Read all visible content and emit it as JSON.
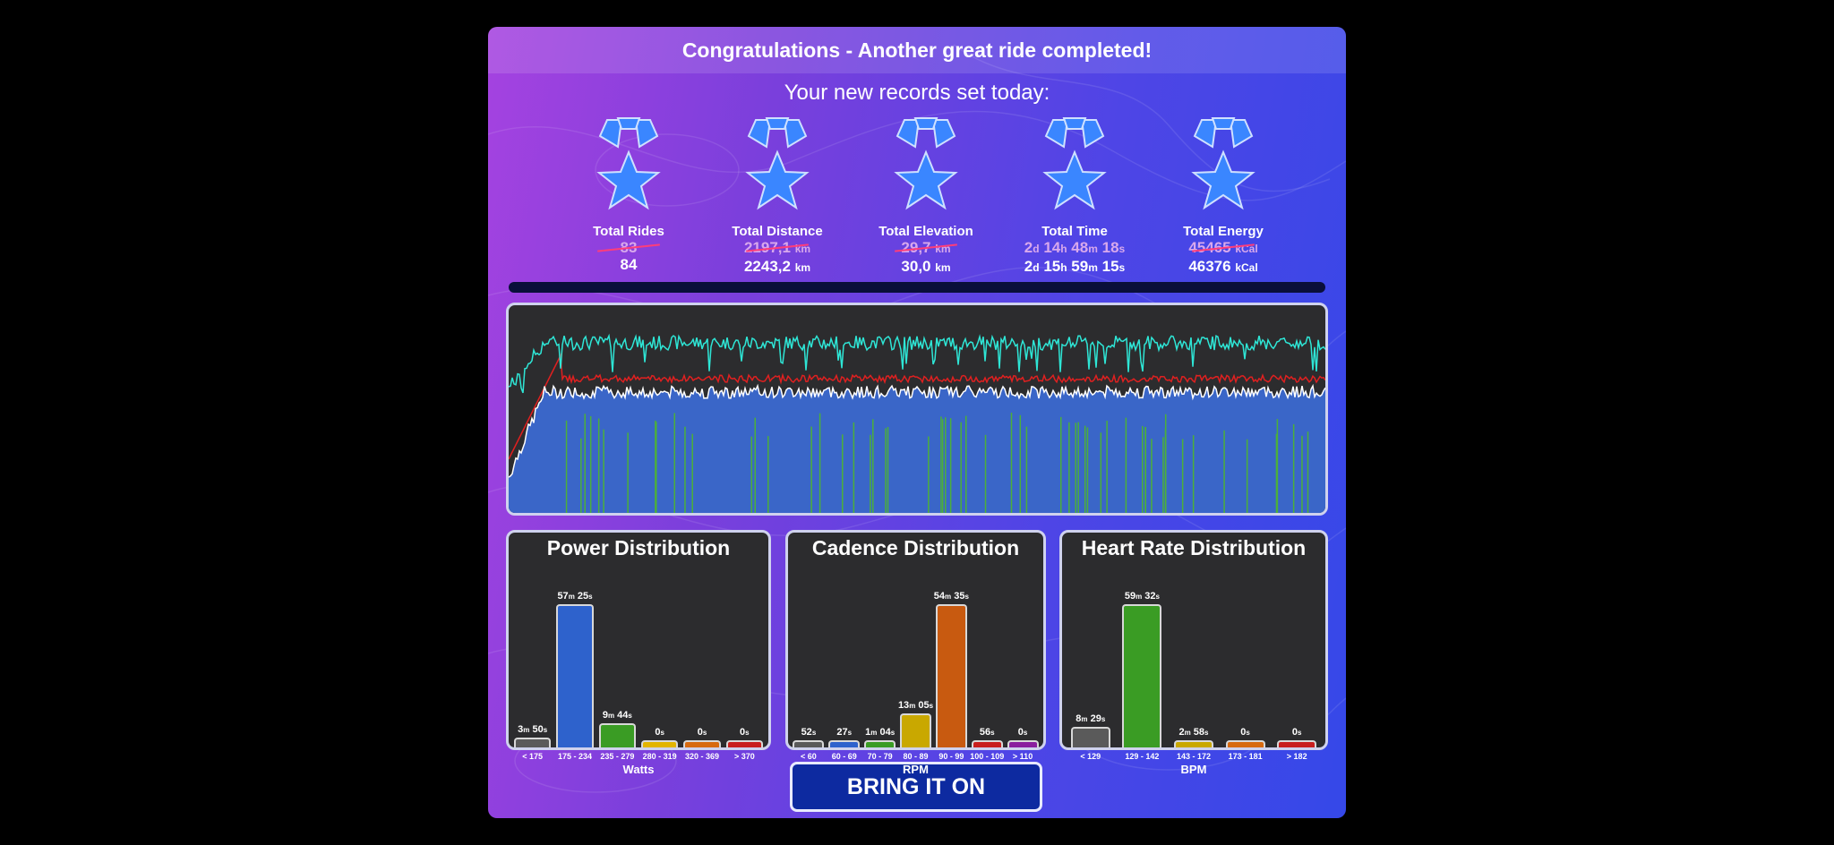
{
  "banner": {
    "title": "Congratulations - Another great ride completed!"
  },
  "records": {
    "title": "Your new records set today:",
    "items": [
      {
        "label": "Total Rides",
        "old": "83",
        "new": "84"
      },
      {
        "label": "Total Distance",
        "old_value": "2197,1",
        "old_unit": "km",
        "new_value": "2243,2",
        "new_unit": "km"
      },
      {
        "label": "Total Elevation",
        "old_value": "29,7",
        "old_unit": "km",
        "new_value": "30,0",
        "new_unit": "km"
      },
      {
        "label": "Total Time",
        "old_parts": [
          "2",
          "d",
          " 14",
          "h",
          " 48",
          "m",
          " 18",
          "s"
        ],
        "new_parts": [
          "2",
          "d",
          " 15",
          "h",
          " 59",
          "m",
          " 15",
          "s"
        ]
      },
      {
        "label": "Total Energy",
        "old_value": "45465",
        "old_unit": "kCal",
        "new_value": "46376",
        "new_unit": "kCal"
      }
    ]
  },
  "colors": {
    "medal": "#3a86ff",
    "power_line": "#ffffff",
    "cadence_line": "#2ee6d6",
    "hr_line": "#e02020",
    "area": "#3a66c8",
    "green_spike": "#4caf3a"
  },
  "distributions": [
    {
      "title": "Power Distribution",
      "unit": "Watts",
      "bars": [
        {
          "category": "< 175",
          "value_min": 3,
          "value_s": 50,
          "label": [
            "3",
            "m",
            " 50",
            "s"
          ],
          "color": "#5a5a5a"
        },
        {
          "category": "175 - 234",
          "value_min": 57,
          "value_s": 25,
          "label": [
            "57",
            "m",
            " 25",
            "s"
          ],
          "color": "#2e62cc"
        },
        {
          "category": "235 - 279",
          "value_min": 9,
          "value_s": 44,
          "label": [
            "9",
            "m",
            " 44",
            "s"
          ],
          "color": "#3a9c24"
        },
        {
          "category": "280 - 319",
          "value_min": 0,
          "value_s": 0,
          "label": [
            "0",
            "s"
          ],
          "color": "#e2b400"
        },
        {
          "category": "320 - 369",
          "value_min": 0,
          "value_s": 0,
          "label": [
            "0",
            "s"
          ],
          "color": "#d76a10"
        },
        {
          "category": "> 370",
          "value_min": 0,
          "value_s": 0,
          "label": [
            "0",
            "s"
          ],
          "color": "#c81e1e"
        }
      ]
    },
    {
      "title": "Cadence Distribution",
      "unit": "RPM",
      "bars": [
        {
          "category": "< 60",
          "value_min": 0,
          "value_s": 52,
          "label": [
            "52",
            "s"
          ],
          "color": "#5a5a5a"
        },
        {
          "category": "60 - 69",
          "value_min": 0,
          "value_s": 27,
          "label": [
            "27",
            "s"
          ],
          "color": "#2e62cc"
        },
        {
          "category": "70 - 79",
          "value_min": 1,
          "value_s": 4,
          "label": [
            "1",
            "m",
            " 04",
            "s"
          ],
          "color": "#3a9c24"
        },
        {
          "category": "80 - 89",
          "value_min": 13,
          "value_s": 5,
          "label": [
            "13",
            "m",
            " 05",
            "s"
          ],
          "color": "#c9a800"
        },
        {
          "category": "90 - 99",
          "value_min": 54,
          "value_s": 35,
          "label": [
            "54",
            "m",
            " 35",
            "s"
          ],
          "color": "#c85a10"
        },
        {
          "category": "100 - 109",
          "value_min": 0,
          "value_s": 56,
          "label": [
            "56",
            "s"
          ],
          "color": "#c81e1e"
        },
        {
          "category": "> 110",
          "value_min": 0,
          "value_s": 0,
          "label": [
            "0",
            "s"
          ],
          "color": "#8a1e9e"
        }
      ]
    },
    {
      "title": "Heart Rate Distribution",
      "unit": "BPM",
      "bars": [
        {
          "category": "< 129",
          "value_min": 8,
          "value_s": 29,
          "label": [
            "8",
            "m",
            " 29",
            "s"
          ],
          "color": "#5a5a5a"
        },
        {
          "category": "129 - 142",
          "value_min": 59,
          "value_s": 32,
          "label": [
            "59",
            "m",
            " 32",
            "s"
          ],
          "color": "#3a9c24"
        },
        {
          "category": "143 - 172",
          "value_min": 2,
          "value_s": 58,
          "label": [
            "2",
            "m",
            " 58",
            "s"
          ],
          "color": "#c9a800"
        },
        {
          "category": "173 - 181",
          "value_min": 0,
          "value_s": 0,
          "label": [
            "0",
            "s"
          ],
          "color": "#d76a10"
        },
        {
          "category": "> 182",
          "value_min": 0,
          "value_s": 0,
          "label": [
            "0",
            "s"
          ],
          "color": "#c81e1e"
        }
      ]
    }
  ],
  "button": {
    "label": "BRING IT ON"
  }
}
